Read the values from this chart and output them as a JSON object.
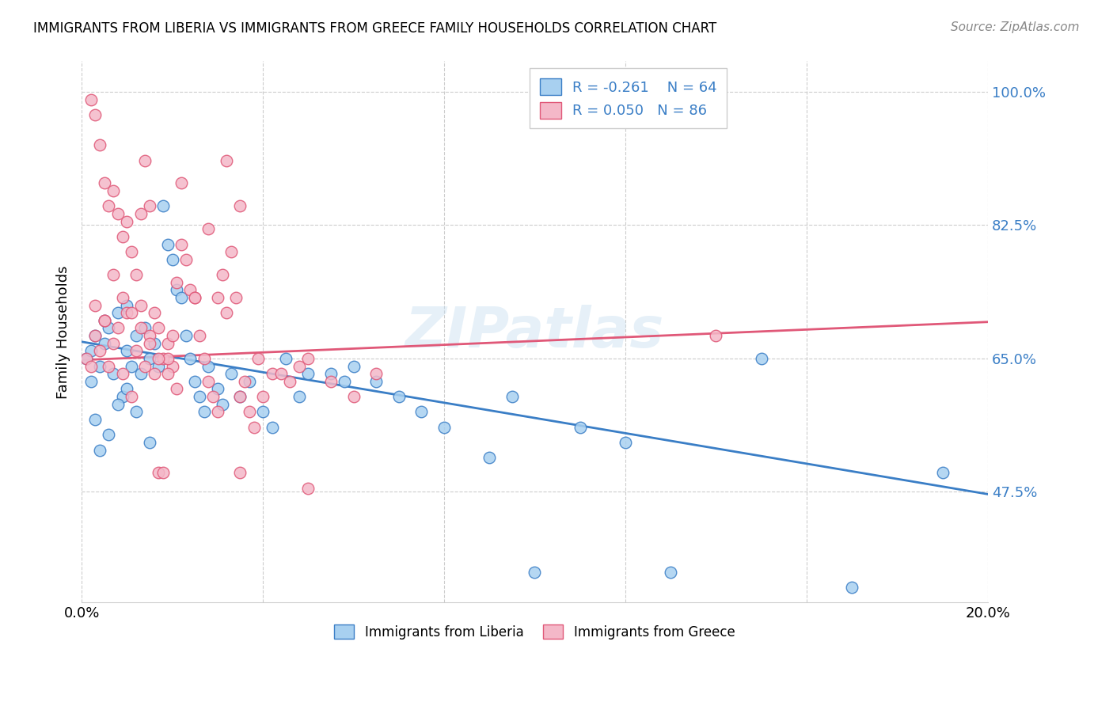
{
  "title": "IMMIGRANTS FROM LIBERIA VS IMMIGRANTS FROM GREECE FAMILY HOUSEHOLDS CORRELATION CHART",
  "source": "Source: ZipAtlas.com",
  "ylabel": "Family Households",
  "xlim": [
    0.0,
    0.2
  ],
  "ylim": [
    0.33,
    1.04
  ],
  "yticks": [
    0.475,
    0.65,
    0.825,
    1.0
  ],
  "ytick_labels": [
    "47.5%",
    "65.0%",
    "82.5%",
    "100.0%"
  ],
  "xticks": [
    0.0,
    0.04,
    0.08,
    0.12,
    0.16,
    0.2
  ],
  "xtick_labels": [
    "0.0%",
    "",
    "",
    "",
    "",
    "20.0%"
  ],
  "legend_r_liberia": "R = -0.261",
  "legend_n_liberia": "N = 64",
  "legend_r_greece": "R = 0.050",
  "legend_n_greece": "N = 86",
  "color_liberia": "#A8D0F0",
  "color_greece": "#F4B8C8",
  "line_color_liberia": "#3A7EC6",
  "line_color_greece": "#E05878",
  "background_color": "#ffffff",
  "watermark": "ZIPatlas",
  "liberia_x": [
    0.001,
    0.002,
    0.002,
    0.003,
    0.004,
    0.005,
    0.005,
    0.006,
    0.007,
    0.008,
    0.009,
    0.01,
    0.01,
    0.011,
    0.012,
    0.013,
    0.014,
    0.015,
    0.016,
    0.017,
    0.018,
    0.019,
    0.02,
    0.021,
    0.022,
    0.023,
    0.024,
    0.025,
    0.026,
    0.027,
    0.028,
    0.03,
    0.031,
    0.033,
    0.035,
    0.037,
    0.04,
    0.042,
    0.045,
    0.048,
    0.05,
    0.055,
    0.058,
    0.06,
    0.065,
    0.07,
    0.075,
    0.08,
    0.09,
    0.095,
    0.1,
    0.11,
    0.12,
    0.13,
    0.15,
    0.17,
    0.19,
    0.003,
    0.004,
    0.006,
    0.008,
    0.01,
    0.012,
    0.015
  ],
  "liberia_y": [
    0.65,
    0.66,
    0.62,
    0.68,
    0.64,
    0.7,
    0.67,
    0.69,
    0.63,
    0.71,
    0.6,
    0.66,
    0.72,
    0.64,
    0.68,
    0.63,
    0.69,
    0.65,
    0.67,
    0.64,
    0.85,
    0.8,
    0.78,
    0.74,
    0.73,
    0.68,
    0.65,
    0.62,
    0.6,
    0.58,
    0.64,
    0.61,
    0.59,
    0.63,
    0.6,
    0.62,
    0.58,
    0.56,
    0.65,
    0.6,
    0.63,
    0.63,
    0.62,
    0.64,
    0.62,
    0.6,
    0.58,
    0.56,
    0.52,
    0.6,
    0.37,
    0.56,
    0.54,
    0.37,
    0.65,
    0.35,
    0.5,
    0.57,
    0.53,
    0.55,
    0.59,
    0.61,
    0.58,
    0.54
  ],
  "greece_x": [
    0.001,
    0.002,
    0.003,
    0.004,
    0.005,
    0.006,
    0.007,
    0.008,
    0.009,
    0.01,
    0.011,
    0.012,
    0.013,
    0.014,
    0.015,
    0.016,
    0.017,
    0.018,
    0.019,
    0.02,
    0.021,
    0.022,
    0.023,
    0.024,
    0.025,
    0.026,
    0.027,
    0.028,
    0.029,
    0.03,
    0.031,
    0.032,
    0.033,
    0.034,
    0.035,
    0.036,
    0.037,
    0.038,
    0.039,
    0.04,
    0.042,
    0.044,
    0.046,
    0.048,
    0.05,
    0.055,
    0.06,
    0.065,
    0.14,
    0.002,
    0.003,
    0.004,
    0.005,
    0.006,
    0.007,
    0.008,
    0.009,
    0.01,
    0.011,
    0.012,
    0.013,
    0.014,
    0.015,
    0.016,
    0.017,
    0.018,
    0.019,
    0.02,
    0.022,
    0.025,
    0.028,
    0.03,
    0.032,
    0.035,
    0.003,
    0.005,
    0.007,
    0.009,
    0.011,
    0.013,
    0.015,
    0.017,
    0.019,
    0.021,
    0.035,
    0.05
  ],
  "greece_y": [
    0.65,
    0.64,
    0.68,
    0.66,
    0.7,
    0.64,
    0.67,
    0.69,
    0.63,
    0.71,
    0.6,
    0.66,
    0.72,
    0.64,
    0.68,
    0.63,
    0.69,
    0.65,
    0.67,
    0.64,
    0.75,
    0.8,
    0.78,
    0.74,
    0.73,
    0.68,
    0.65,
    0.62,
    0.6,
    0.58,
    0.76,
    0.71,
    0.79,
    0.73,
    0.6,
    0.62,
    0.58,
    0.56,
    0.65,
    0.6,
    0.63,
    0.63,
    0.62,
    0.64,
    0.65,
    0.62,
    0.6,
    0.63,
    0.68,
    0.99,
    0.97,
    0.93,
    0.88,
    0.85,
    0.87,
    0.84,
    0.81,
    0.83,
    0.79,
    0.76,
    0.84,
    0.91,
    0.85,
    0.71,
    0.5,
    0.5,
    0.65,
    0.68,
    0.88,
    0.73,
    0.82,
    0.73,
    0.91,
    0.85,
    0.72,
    0.7,
    0.76,
    0.73,
    0.71,
    0.69,
    0.67,
    0.65,
    0.63,
    0.61,
    0.5,
    0.48
  ],
  "trend_liberia_y0": 0.672,
  "trend_liberia_y1": 0.472,
  "trend_greece_y0": 0.648,
  "trend_greece_y1": 0.698
}
